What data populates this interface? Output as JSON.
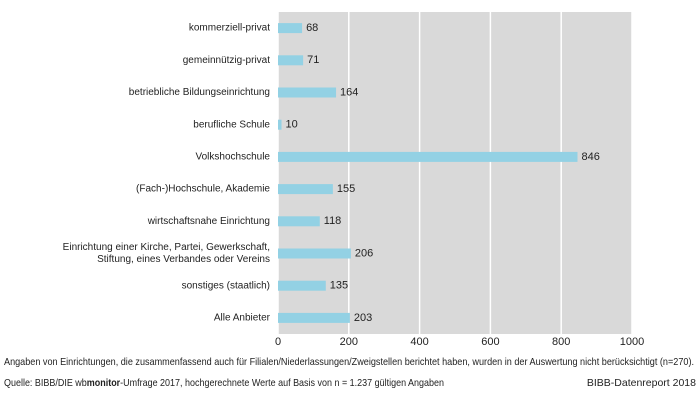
{
  "chart_data": {
    "type": "hbar",
    "categories": [
      "kommerziell-privat",
      "gemeinnützig-privat",
      "betriebliche Bildungseinrichtung",
      "berufliche Schule",
      "Volkshochschule",
      "(Fach-)Hochschule, Akademie",
      "wirtschaftsnahe Einrichtung",
      [
        "Einrichtung einer Kirche, Partei, Gewerkschaft,",
        "Stiftung, eines Verbandes oder Vereins"
      ],
      "sonstiges (staatlich)",
      "Alle Anbieter"
    ],
    "values": [
      68,
      71,
      164,
      10,
      846,
      155,
      118,
      206,
      135,
      203
    ],
    "color": "#93d1e4",
    "xlim": [
      0,
      1000
    ],
    "xticks": [
      0,
      200,
      400,
      600,
      800,
      1000
    ],
    "grid": true,
    "footnote": "Angaben von Einrichtungen, die zusammenfassend auch für Filialen/Niederlassungen/Zweigstellen berichtet haben, wurden in der Auswertung nicht berücksichtigt (n=270).",
    "source": [
      "Quelle: BIBB/DIE wb",
      "monitor",
      "-Umfrage 2017, hochgerechnete Werte auf Basis von n = 1.237 gültigen Angaben"
    ],
    "credit": "BIBB-Datenreport 2018"
  }
}
